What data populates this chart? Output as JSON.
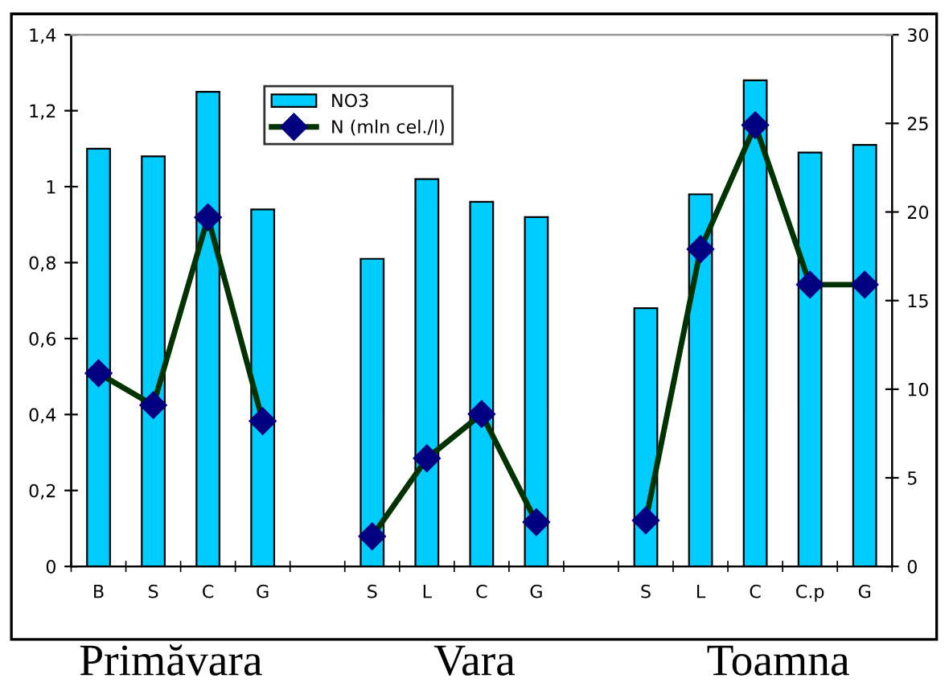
{
  "chart_data": {
    "type": "bar",
    "categories": [
      "B",
      "S",
      "C",
      "G",
      null,
      "S",
      "L",
      "C",
      "G",
      null,
      "S",
      "L",
      "C",
      "C.p",
      "G"
    ],
    "series": [
      {
        "name": "NO3",
        "color": "#00ccff",
        "values": [
          1.1,
          1.08,
          1.25,
          0.94,
          null,
          0.81,
          1.02,
          0.96,
          0.92,
          null,
          0.68,
          0.98,
          1.28,
          1.09,
          1.11
        ]
      },
      {
        "name": "N (mln cel./l)",
        "type": "line",
        "axis": "y2",
        "color": "#003300",
        "values": [
          10.9,
          9.1,
          19.7,
          8.2,
          null,
          1.7,
          6.1,
          8.6,
          2.5,
          null,
          2.6,
          17.9,
          24.9,
          15.9,
          15.9
        ]
      }
    ],
    "ylim": [
      0,
      1.4
    ],
    "yticks": [
      0,
      {
        "value": 0.2,
        "label": "0,2"
      },
      {
        "value": 0.4,
        "label": "0,4"
      },
      {
        "value": 0.6,
        "label": "0,6"
      },
      {
        "value": 0.8,
        "label": "0,8"
      },
      1,
      {
        "value": 1.2,
        "label": "1,2"
      },
      {
        "value": 1.4,
        "label": "1,4"
      }
    ],
    "y2lim": [
      0,
      30
    ],
    "y2ticks": [
      0,
      5,
      10,
      15,
      20,
      25,
      30
    ],
    "marker": "diamond",
    "line_style": "solid",
    "grid": false,
    "legend": "top",
    "annotations": [
      "Primăvara",
      "Vara",
      "Toamna"
    ]
  }
}
